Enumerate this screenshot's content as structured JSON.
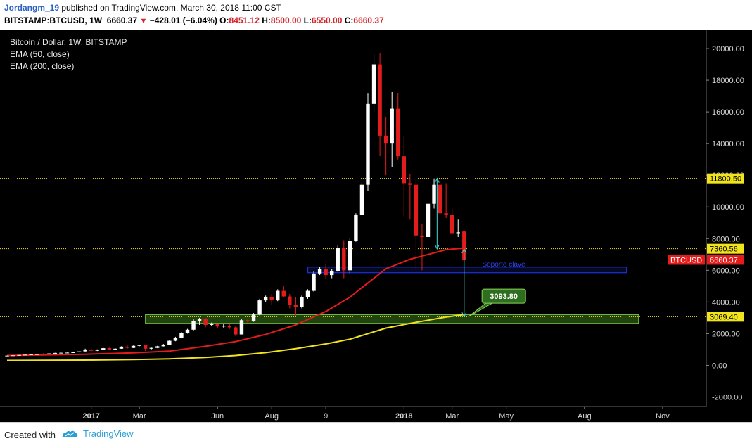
{
  "header": {
    "author": "Jordangm_19",
    "published": "published on TradingView.com, March 30, 2018 11:00 CST",
    "symbol": "BITSTAMP:BTCUSD, 1W",
    "price": "6660.37",
    "change": "−428.01 (−6.04%)",
    "o_label": "O:",
    "o_value": "8451.12",
    "h_label": "H:",
    "h_value": "8500.00",
    "l_label": "L:",
    "l_value": "6550.00",
    "c_label": "C:",
    "c_value": "6660.37"
  },
  "legend": {
    "title": "Bitcoin / Dollar, 1W, BITSTAMP",
    "ema50": "EMA (50, close)",
    "ema200": "EMA (200, close)"
  },
  "footer": {
    "created_with": "Created with",
    "brand": "TradingView"
  },
  "colors": {
    "background": "#000000",
    "up_candle": "#ffffff",
    "down_candle": "#e31c1c",
    "ema50": "#e31c1c",
    "ema200": "#f2e41c",
    "support_zone": "#3c7a1e",
    "blue_zone": "#1d2fd6",
    "cyan_arrow": "#3ddad7"
  },
  "chart_data": {
    "type": "candlestick",
    "title": "Bitcoin / Dollar, 1W, BITSTAMP",
    "ylim": [
      -2600,
      21200
    ],
    "y_ticks": [
      "-2000.00",
      "0.00",
      "2000.00",
      "4000.00",
      "6000.00",
      "8000.00",
      "10000.00",
      "12000.00",
      "14000.00",
      "16000.00",
      "18000.00",
      "20000.00"
    ],
    "y_tick_values": [
      -2000,
      0,
      2000,
      4000,
      6000,
      8000,
      10000,
      12000,
      14000,
      16000,
      18000,
      20000
    ],
    "x_ticks": [
      {
        "label": "2017",
        "week": 14,
        "bold": true
      },
      {
        "label": "Mar",
        "week": 22,
        "bold": false
      },
      {
        "label": "Jun",
        "week": 35,
        "bold": false
      },
      {
        "label": "Aug",
        "week": 44,
        "bold": false
      },
      {
        "label": "9",
        "week": 53,
        "bold": false
      },
      {
        "label": "2018",
        "week": 66,
        "bold": true
      },
      {
        "label": "Mar",
        "week": 74,
        "bold": false
      },
      {
        "label": "May",
        "week": 83,
        "bold": false
      },
      {
        "label": "Aug",
        "week": 96,
        "bold": false
      },
      {
        "label": "Nov",
        "week": 109,
        "bold": false
      }
    ],
    "candles": [
      [
        600,
        620,
        580,
        610
      ],
      [
        610,
        640,
        600,
        630
      ],
      [
        630,
        660,
        620,
        650
      ],
      [
        650,
        680,
        640,
        670
      ],
      [
        670,
        700,
        650,
        690
      ],
      [
        690,
        720,
        670,
        700
      ],
      [
        700,
        740,
        690,
        730
      ],
      [
        730,
        760,
        710,
        750
      ],
      [
        750,
        790,
        740,
        780
      ],
      [
        780,
        800,
        760,
        790
      ],
      [
        790,
        810,
        770,
        800
      ],
      [
        800,
        830,
        780,
        820
      ],
      [
        820,
        900,
        800,
        880
      ],
      [
        880,
        1050,
        870,
        1000
      ],
      [
        1000,
        1050,
        880,
        920
      ],
      [
        920,
        1010,
        900,
        990
      ],
      [
        990,
        1100,
        980,
        1080
      ],
      [
        1080,
        1120,
        950,
        1000
      ],
      [
        1000,
        1070,
        990,
        1050
      ],
      [
        1050,
        1200,
        1040,
        1180
      ],
      [
        1180,
        1250,
        1050,
        1100
      ],
      [
        1100,
        1250,
        1090,
        1230
      ],
      [
        1230,
        1300,
        1200,
        1280
      ],
      [
        1280,
        1290,
        900,
        1050
      ],
      [
        1050,
        1120,
        1000,
        1100
      ],
      [
        1100,
        1230,
        1080,
        1200
      ],
      [
        1200,
        1350,
        1190,
        1300
      ],
      [
        1300,
        1600,
        1290,
        1550
      ],
      [
        1550,
        1800,
        1520,
        1750
      ],
      [
        1750,
        2100,
        1740,
        2050
      ],
      [
        2050,
        2300,
        2000,
        2250
      ],
      [
        2250,
        2900,
        2200,
        2800
      ],
      [
        2800,
        3000,
        2550,
        2950
      ],
      [
        2950,
        2980,
        2400,
        2550
      ],
      [
        2550,
        2700,
        2500,
        2600
      ],
      [
        2600,
        2650,
        2350,
        2450
      ],
      [
        2450,
        2600,
        2380,
        2500
      ],
      [
        2500,
        2600,
        2300,
        2400
      ],
      [
        2400,
        2500,
        1850,
        1950
      ],
      [
        1950,
        2900,
        1950,
        2850
      ],
      [
        2850,
        2900,
        2700,
        2800
      ],
      [
        2800,
        3300,
        2750,
        3200
      ],
      [
        3200,
        4200,
        3150,
        4100
      ],
      [
        4100,
        4400,
        4000,
        4300
      ],
      [
        4300,
        4500,
        3800,
        4100
      ],
      [
        4100,
        4800,
        4050,
        4700
      ],
      [
        4700,
        5000,
        4300,
        4350
      ],
      [
        4350,
        4500,
        3600,
        3800
      ],
      [
        3800,
        4300,
        3100,
        3700
      ],
      [
        3700,
        4400,
        3600,
        4300
      ],
      [
        4300,
        4800,
        4200,
        4700
      ],
      [
        4700,
        5950,
        4650,
        5800
      ],
      [
        5800,
        6200,
        5700,
        6100
      ],
      [
        6100,
        6400,
        5450,
        5700
      ],
      [
        5700,
        6100,
        5500,
        5950
      ],
      [
        5950,
        7600,
        5900,
        7400
      ],
      [
        7400,
        7900,
        5500,
        6000
      ],
      [
        6000,
        8000,
        5800,
        7850
      ],
      [
        7850,
        9600,
        7800,
        9500
      ],
      [
        9500,
        11600,
        9400,
        11400
      ],
      [
        11400,
        17200,
        11000,
        16500
      ],
      [
        16500,
        19666,
        16000,
        19000
      ],
      [
        19000,
        19700,
        13200,
        14500
      ],
      [
        14500,
        15700,
        12000,
        14000
      ],
      [
        14000,
        17250,
        12500,
        16200
      ],
      [
        16200,
        17200,
        13000,
        13200
      ],
      [
        13200,
        14500,
        9400,
        11500
      ],
      [
        11500,
        12100,
        9200,
        11400
      ],
      [
        11400,
        11800,
        6100,
        8200
      ],
      [
        8200,
        8900,
        6000,
        8100
      ],
      [
        8100,
        10400,
        8000,
        10200
      ],
      [
        10200,
        11800,
        9900,
        11400
      ],
      [
        11400,
        11600,
        9500,
        9600
      ],
      [
        9600,
        11500,
        9300,
        9500
      ],
      [
        9500,
        9900,
        8300,
        8300
      ],
      [
        8300,
        9200,
        8100,
        8400
      ],
      [
        8450,
        8500,
        6550,
        6660
      ]
    ],
    "ema50": [
      [
        0,
        620
      ],
      [
        13,
        700
      ],
      [
        21,
        790
      ],
      [
        27,
        900
      ],
      [
        33,
        1200
      ],
      [
        38,
        1500
      ],
      [
        43,
        1950
      ],
      [
        48,
        2550
      ],
      [
        53,
        3400
      ],
      [
        57,
        4300
      ],
      [
        60,
        5200
      ],
      [
        63,
        6100
      ],
      [
        67,
        6700
      ],
      [
        70,
        7000
      ],
      [
        73,
        7300
      ],
      [
        76,
        7400
      ]
    ],
    "ema200": [
      [
        0,
        310
      ],
      [
        13,
        330
      ],
      [
        21,
        360
      ],
      [
        27,
        410
      ],
      [
        33,
        500
      ],
      [
        38,
        620
      ],
      [
        43,
        800
      ],
      [
        48,
        1050
      ],
      [
        53,
        1350
      ],
      [
        57,
        1650
      ],
      [
        60,
        2000
      ],
      [
        63,
        2350
      ],
      [
        67,
        2650
      ],
      [
        70,
        2850
      ],
      [
        73,
        3050
      ],
      [
        76,
        3200
      ]
    ],
    "support_zone": {
      "from_week": 23,
      "to_week": 105,
      "low": 2650,
      "high": 3200
    },
    "blue_zone": {
      "from_week": 50,
      "to_week": 103,
      "low": 5850,
      "high": 6200,
      "label": "Soporte clave"
    },
    "h_lines": [
      {
        "value": 11800.5,
        "label": "11800.50",
        "color": "#f2e41c",
        "tag_bg": "#f2e41c",
        "tag_fg": "#000000"
      },
      {
        "value": 7360.56,
        "label": "7360.56",
        "color": "#f2e41c",
        "tag_bg": "#f2e41c",
        "tag_fg": "#000000"
      },
      {
        "value": 6660.37,
        "label": "6660.37",
        "color": "#e31c1c",
        "tag_bg": "#e31c1c",
        "tag_fg": "#ffffff",
        "name": "BTCUSD"
      },
      {
        "value": 3069.4,
        "label": "3069.40",
        "color": "#f2e41c",
        "tag_bg": "#f2e41c",
        "tag_fg": "#000000"
      }
    ],
    "measure_arrows": [
      {
        "week": 71.5,
        "from": 11800,
        "to": 7350
      },
      {
        "week": 76,
        "from": 7350,
        "to": 3069
      }
    ],
    "callout": {
      "label": "3093.80",
      "week": 78.5,
      "value": 3300
    }
  }
}
